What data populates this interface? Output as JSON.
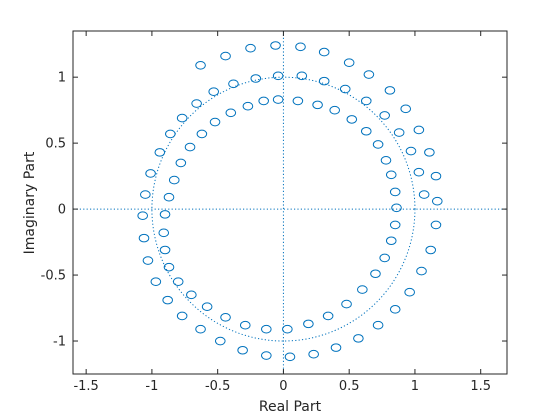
{
  "chart_data": {
    "type": "scatter",
    "title": "",
    "xlabel": "Real Part",
    "ylabel": "Imaginary Part",
    "xlim": [
      -1.6,
      1.7
    ],
    "ylim": [
      -1.25,
      1.35
    ],
    "xticks": [
      -1.5,
      -1,
      -0.5,
      0,
      0.5,
      1,
      1.5
    ],
    "xtick_labels": [
      "-1.5",
      "-1",
      "-0.5",
      "0",
      "0.5",
      "1",
      "1.5"
    ],
    "yticks": [
      -1,
      -0.5,
      0,
      0.5,
      1
    ],
    "ytick_labels": [
      "-1",
      "-0.5",
      "0",
      "0.5",
      "1"
    ],
    "grid": false,
    "marker": "o",
    "marker_color": "#0072bd",
    "reference_color": "#0072bd",
    "reference_lines": [
      "x = 0",
      "y = 0",
      "unit circle"
    ],
    "series": [
      {
        "values": [
          [
            -0.63,
            1.09
          ],
          [
            -0.44,
            1.16
          ],
          [
            -0.25,
            1.22
          ],
          [
            -0.06,
            1.24
          ],
          [
            0.13,
            1.23
          ],
          [
            0.31,
            1.19
          ],
          [
            0.5,
            1.11
          ],
          [
            0.65,
            1.02
          ],
          [
            0.81,
            0.9
          ],
          [
            0.93,
            0.76
          ],
          [
            1.03,
            0.6
          ],
          [
            1.11,
            0.43
          ],
          [
            1.16,
            0.25
          ],
          [
            1.17,
            0.06
          ],
          [
            1.16,
            -0.12
          ],
          [
            1.12,
            -0.31
          ],
          [
            1.05,
            -0.47
          ],
          [
            0.96,
            -0.63
          ],
          [
            0.85,
            -0.76
          ],
          [
            0.72,
            -0.88
          ],
          [
            0.57,
            -0.98
          ],
          [
            0.4,
            -1.05
          ],
          [
            0.23,
            -1.1
          ],
          [
            0.05,
            -1.12
          ],
          [
            -0.13,
            -1.11
          ],
          [
            -0.31,
            -1.07
          ],
          [
            -0.48,
            -1.0
          ],
          [
            -0.63,
            -0.91
          ],
          [
            -0.77,
            -0.81
          ],
          [
            -0.88,
            -0.69
          ],
          [
            -0.97,
            -0.55
          ],
          [
            -1.03,
            -0.39
          ],
          [
            -1.06,
            -0.22
          ],
          [
            -1.07,
            -0.05
          ],
          [
            -1.05,
            0.11
          ],
          [
            -1.01,
            0.27
          ],
          [
            -0.94,
            0.43
          ],
          [
            -0.86,
            0.57
          ],
          [
            -0.77,
            0.69
          ],
          [
            -0.66,
            0.8
          ],
          [
            -0.53,
            0.89
          ],
          [
            -0.38,
            0.95
          ],
          [
            -0.21,
            0.99
          ],
          [
            -0.04,
            1.01
          ],
          [
            0.14,
            1.01
          ],
          [
            0.31,
            0.97
          ],
          [
            0.47,
            0.91
          ],
          [
            0.63,
            0.82
          ],
          [
            0.77,
            0.71
          ],
          [
            0.88,
            0.58
          ],
          [
            0.97,
            0.44
          ],
          [
            1.03,
            0.28
          ],
          [
            1.07,
            0.11
          ]
        ]
      },
      {
        "values": [
          [
            -0.04,
            0.83
          ],
          [
            0.11,
            0.82
          ],
          [
            0.26,
            0.79
          ],
          [
            0.39,
            0.75
          ],
          [
            0.52,
            0.68
          ],
          [
            0.63,
            0.59
          ],
          [
            0.72,
            0.49
          ],
          [
            0.78,
            0.37
          ],
          [
            0.82,
            0.26
          ],
          [
            0.85,
            0.13
          ],
          [
            0.86,
            0.01
          ],
          [
            0.85,
            -0.12
          ],
          [
            0.82,
            -0.24
          ],
          [
            0.77,
            -0.37
          ],
          [
            0.7,
            -0.49
          ],
          [
            0.6,
            -0.61
          ],
          [
            0.48,
            -0.72
          ],
          [
            0.34,
            -0.81
          ],
          [
            0.19,
            -0.87
          ],
          [
            0.03,
            -0.91
          ],
          [
            -0.13,
            -0.91
          ],
          [
            -0.29,
            -0.88
          ],
          [
            -0.44,
            -0.82
          ],
          [
            -0.58,
            -0.74
          ],
          [
            -0.7,
            -0.65
          ],
          [
            -0.8,
            -0.55
          ],
          [
            -0.87,
            -0.44
          ],
          [
            -0.9,
            -0.31
          ],
          [
            -0.91,
            -0.18
          ],
          [
            -0.9,
            -0.04
          ],
          [
            -0.87,
            0.09
          ],
          [
            -0.83,
            0.22
          ],
          [
            -0.78,
            0.35
          ],
          [
            -0.71,
            0.47
          ],
          [
            -0.62,
            0.57
          ],
          [
            -0.52,
            0.66
          ],
          [
            -0.4,
            0.73
          ],
          [
            -0.27,
            0.78
          ],
          [
            -0.15,
            0.82
          ]
        ]
      }
    ]
  }
}
